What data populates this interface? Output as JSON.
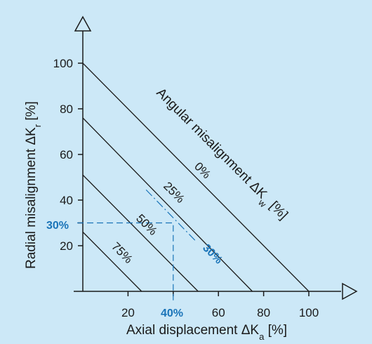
{
  "chart_data": {
    "type": "line",
    "background": "#cce8f7",
    "xlabel": "Axial displacement  ΔK",
    "xlabel_sub": "a",
    "xlabel_unit": " [%]",
    "ylabel": "Radial misalignment  ΔK",
    "ylabel_sub": "r",
    "ylabel_unit": " [%]",
    "xlim": [
      0,
      100
    ],
    "ylim": [
      0,
      100
    ],
    "x_ticks": [
      "20",
      "40",
      "60",
      "80",
      "100"
    ],
    "y_ticks": [
      "20",
      "40",
      "60",
      "80",
      "100"
    ],
    "series_group_title": "Angular misalignment  ΔK",
    "series_group_sub": "w",
    "series_group_unit": " [%]",
    "series": [
      {
        "name": "0%",
        "x": [
          0,
          100
        ],
        "y": [
          100,
          0
        ]
      },
      {
        "name": "25%",
        "x": [
          0,
          75
        ],
        "y": [
          76,
          0
        ]
      },
      {
        "name": "50%",
        "x": [
          0,
          51
        ],
        "y": [
          51,
          0
        ]
      },
      {
        "name": "75%",
        "x": [
          0,
          26
        ],
        "y": [
          26,
          0
        ]
      }
    ],
    "example": {
      "color": "#1a74b8",
      "x_value": 40,
      "y_value": 30,
      "x_label": "40%",
      "y_label": "30%",
      "angular_label": "30%"
    }
  }
}
